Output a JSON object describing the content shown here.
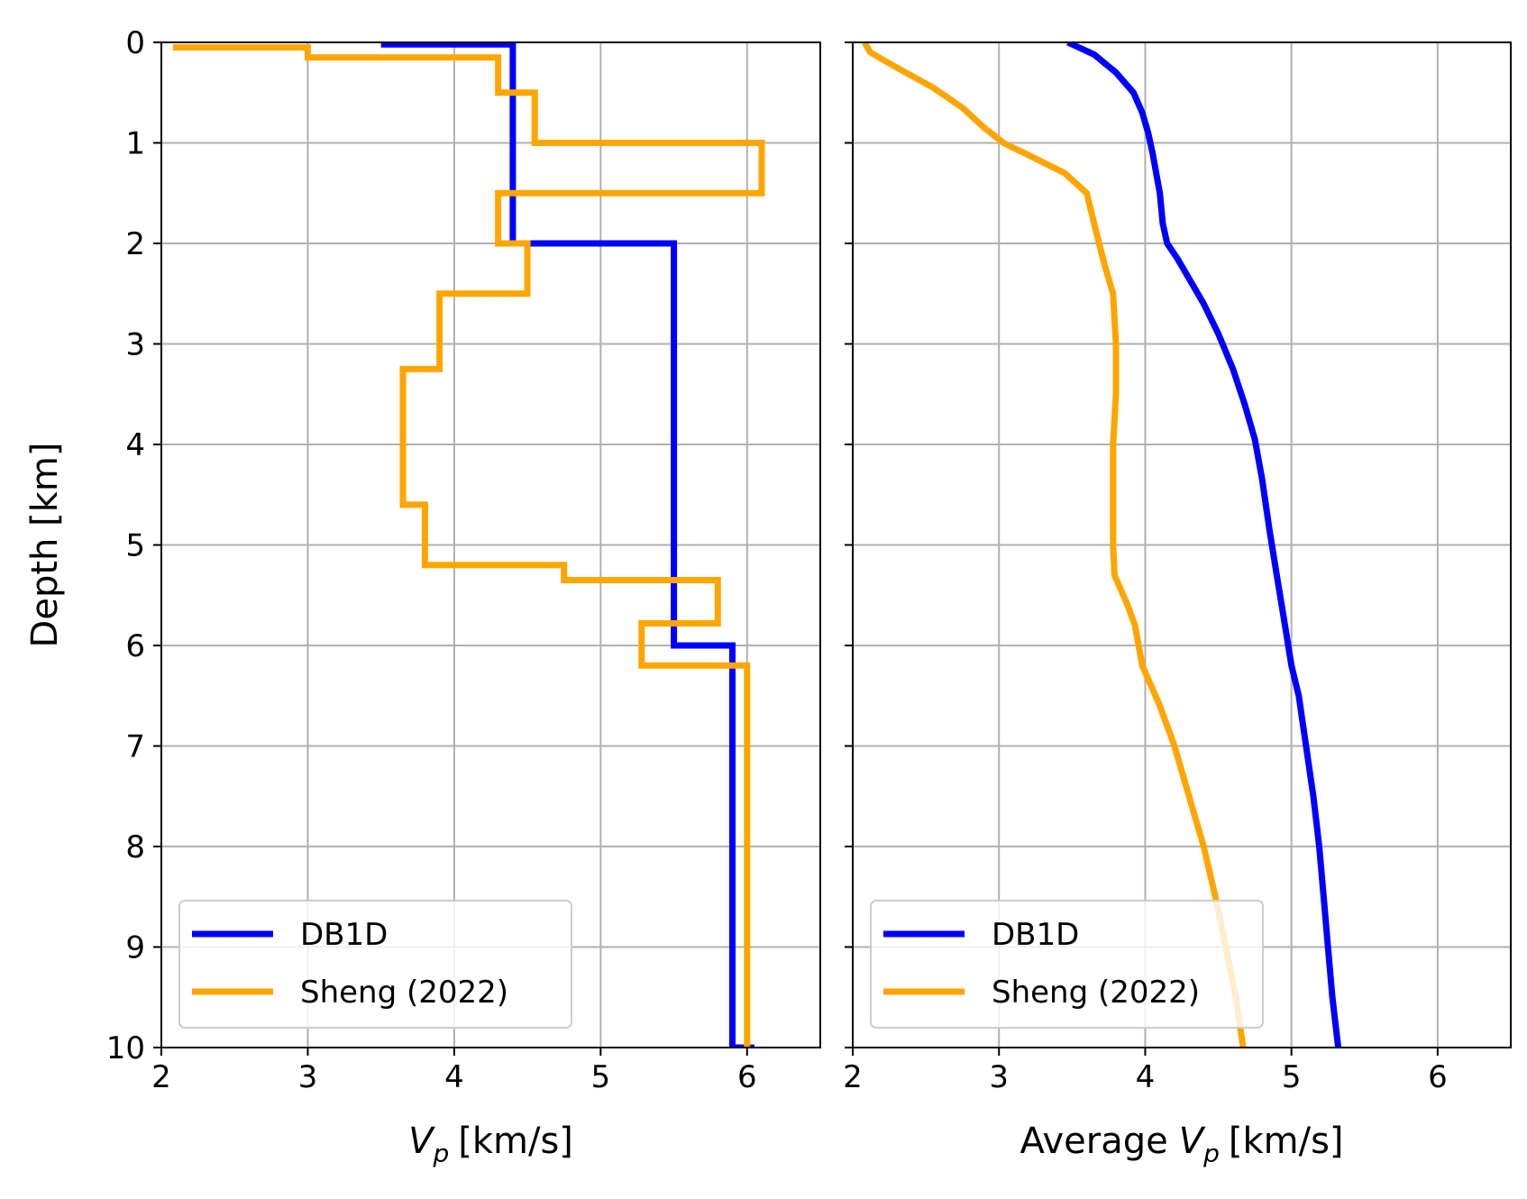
{
  "chart_data": [
    {
      "type": "line",
      "title": "",
      "xlabel_main": "V",
      "xlabel_sub": "p",
      "xlabel_unit": "[km/s]",
      "ylabel": "Depth [km]",
      "xlim": [
        2,
        6.5
      ],
      "ylim": [
        10,
        0
      ],
      "y_inverted": true,
      "xticks": [
        "2",
        "3",
        "4",
        "5",
        "6"
      ],
      "yticks": [
        "0",
        "1",
        "2",
        "3",
        "4",
        "5",
        "6",
        "7",
        "8",
        "9",
        "10"
      ],
      "grid": true,
      "legend": "lower-left",
      "series": [
        {
          "name": "DB1D",
          "color": "#0000ff",
          "points": [
            [
              3.5,
              0.02
            ],
            [
              4.4,
              0.02
            ],
            [
              4.4,
              2.0
            ],
            [
              5.5,
              2.0
            ],
            [
              5.5,
              6.0
            ],
            [
              5.9,
              6.0
            ],
            [
              5.9,
              10.0
            ],
            [
              6.05,
              10.0
            ]
          ]
        },
        {
          "name": "Sheng (2022)",
          "color": "#ffa500",
          "points": [
            [
              2.08,
              0.05
            ],
            [
              3.0,
              0.05
            ],
            [
              3.0,
              0.15
            ],
            [
              4.3,
              0.15
            ],
            [
              4.3,
              0.5
            ],
            [
              4.55,
              0.5
            ],
            [
              4.55,
              1.0
            ],
            [
              6.1,
              1.0
            ],
            [
              6.1,
              1.5
            ],
            [
              4.3,
              1.5
            ],
            [
              4.3,
              2.0
            ],
            [
              4.5,
              2.0
            ],
            [
              4.5,
              2.5
            ],
            [
              3.9,
              2.5
            ],
            [
              3.9,
              3.25
            ],
            [
              3.65,
              3.25
            ],
            [
              3.65,
              4.6
            ],
            [
              3.8,
              4.6
            ],
            [
              3.8,
              5.2
            ],
            [
              4.75,
              5.2
            ],
            [
              4.75,
              5.35
            ],
            [
              5.8,
              5.35
            ],
            [
              5.8,
              5.78
            ],
            [
              5.28,
              5.78
            ],
            [
              5.28,
              6.2
            ],
            [
              6.0,
              6.2
            ],
            [
              6.0,
              10.0
            ]
          ]
        }
      ]
    },
    {
      "type": "line",
      "title": "",
      "xlabel_prefix": "Average",
      "xlabel_main": "V",
      "xlabel_sub": "p",
      "xlabel_unit": "[km/s]",
      "ylabel": "",
      "xlim": [
        2,
        6.5
      ],
      "ylim": [
        10,
        0
      ],
      "y_inverted": true,
      "xticks": [
        "2",
        "3",
        "4",
        "5",
        "6"
      ],
      "grid": true,
      "legend": "lower-left",
      "series": [
        {
          "name": "DB1D",
          "color": "#0000ff",
          "points": [
            [
              3.47,
              0.0
            ],
            [
              3.65,
              0.12
            ],
            [
              3.8,
              0.3
            ],
            [
              3.92,
              0.5
            ],
            [
              3.98,
              0.7
            ],
            [
              4.02,
              0.9
            ],
            [
              4.05,
              1.1
            ],
            [
              4.1,
              1.5
            ],
            [
              4.12,
              1.8
            ],
            [
              4.15,
              2.0
            ],
            [
              4.22,
              2.15
            ],
            [
              4.3,
              2.35
            ],
            [
              4.4,
              2.6
            ],
            [
              4.5,
              2.9
            ],
            [
              4.6,
              3.25
            ],
            [
              4.68,
              3.6
            ],
            [
              4.75,
              3.95
            ],
            [
              4.8,
              4.35
            ],
            [
              4.85,
              4.85
            ],
            [
              4.9,
              5.3
            ],
            [
              4.95,
              5.75
            ],
            [
              5.0,
              6.2
            ],
            [
              5.05,
              6.5
            ],
            [
              5.1,
              7.0
            ],
            [
              5.15,
              7.5
            ],
            [
              5.19,
              8.0
            ],
            [
              5.22,
              8.5
            ],
            [
              5.25,
              9.0
            ],
            [
              5.28,
              9.5
            ],
            [
              5.32,
              10.0
            ]
          ]
        },
        {
          "name": "Sheng (2022)",
          "color": "#ffa500",
          "points": [
            [
              2.08,
              0.0
            ],
            [
              2.12,
              0.1
            ],
            [
              2.3,
              0.25
            ],
            [
              2.55,
              0.45
            ],
            [
              2.75,
              0.65
            ],
            [
              2.9,
              0.85
            ],
            [
              3.03,
              1.0
            ],
            [
              3.2,
              1.12
            ],
            [
              3.45,
              1.3
            ],
            [
              3.6,
              1.5
            ],
            [
              3.65,
              1.8
            ],
            [
              3.72,
              2.2
            ],
            [
              3.78,
              2.5
            ],
            [
              3.8,
              3.0
            ],
            [
              3.8,
              3.5
            ],
            [
              3.78,
              4.0
            ],
            [
              3.78,
              4.5
            ],
            [
              3.78,
              5.0
            ],
            [
              3.79,
              5.3
            ],
            [
              3.88,
              5.6
            ],
            [
              3.93,
              5.8
            ],
            [
              3.98,
              6.2
            ],
            [
              4.1,
              6.6
            ],
            [
              4.2,
              7.0
            ],
            [
              4.3,
              7.5
            ],
            [
              4.4,
              8.0
            ],
            [
              4.48,
              8.5
            ],
            [
              4.55,
              9.0
            ],
            [
              4.62,
              9.5
            ],
            [
              4.67,
              10.0
            ]
          ]
        }
      ]
    }
  ]
}
